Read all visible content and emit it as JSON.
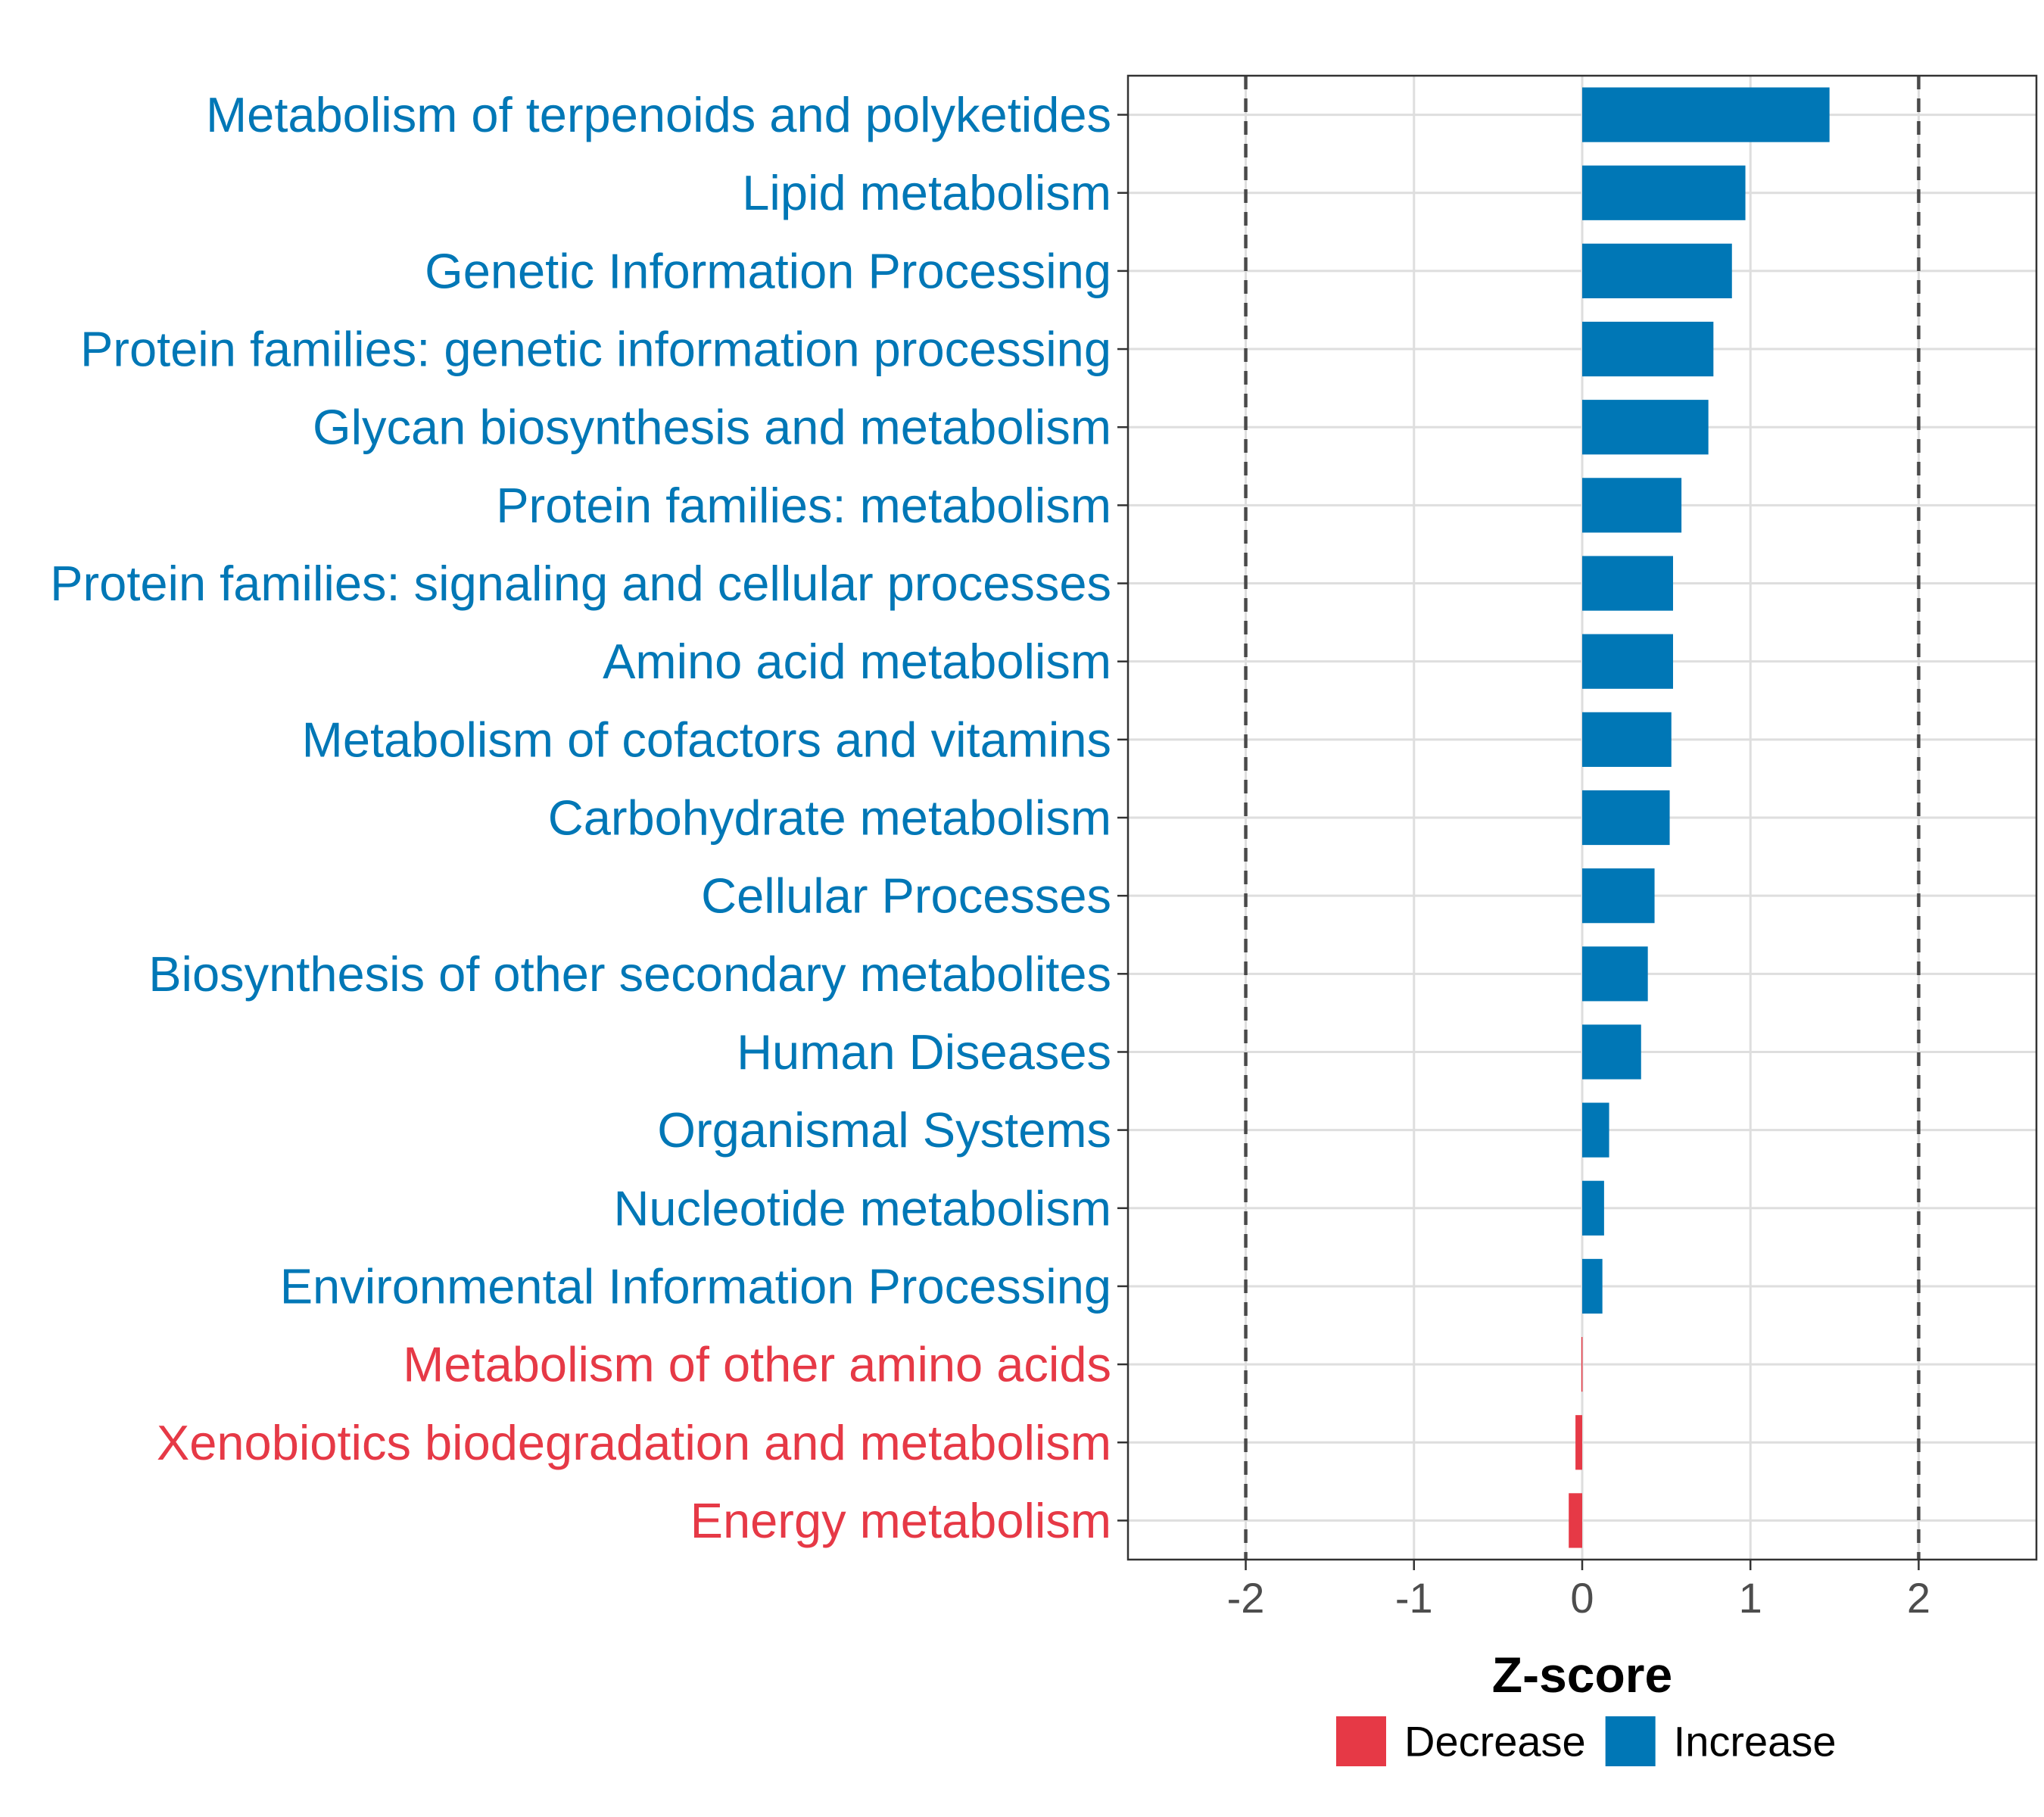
{
  "chart_data": {
    "type": "bar",
    "orientation": "horizontal",
    "xlabel": "Z-score",
    "xlim": [
      -2.7,
      2.7
    ],
    "x_ticks": [
      -2,
      -1,
      0,
      1,
      2
    ],
    "x_tick_labels": [
      "-2",
      "-1",
      "0",
      "1",
      "2"
    ],
    "reference_lines": [
      -2,
      2
    ],
    "grid": true,
    "legend_position": "bottom",
    "legend": [
      {
        "label": "Decrease",
        "color": "#E63946"
      },
      {
        "label": "Increase",
        "color": "#0077B6"
      }
    ],
    "categories": [
      "Metabolism of terpenoids and polyketides",
      "Lipid metabolism",
      "Genetic Information Processing",
      "Protein families: genetic information processing",
      "Glycan biosynthesis and metabolism",
      "Protein families: metabolism",
      "Protein families: signaling and cellular processes",
      "Amino acid metabolism",
      "Metabolism of cofactors and vitamins",
      "Carbohydrate metabolism",
      "Cellular Processes",
      "Biosynthesis of other secondary metabolites",
      "Human Diseases",
      "Organismal Systems",
      "Nucleotide metabolism",
      "Environmental Information Processing",
      "Metabolism of other amino acids",
      "Xenobiotics biodegradation and metabolism",
      "Energy metabolism"
    ],
    "values": [
      1.47,
      0.97,
      0.89,
      0.78,
      0.75,
      0.59,
      0.54,
      0.54,
      0.53,
      0.52,
      0.43,
      0.39,
      0.35,
      0.16,
      0.13,
      0.12,
      -0.005,
      -0.04,
      -0.08
    ],
    "groups": [
      "Increase",
      "Increase",
      "Increase",
      "Increase",
      "Increase",
      "Increase",
      "Increase",
      "Increase",
      "Increase",
      "Increase",
      "Increase",
      "Increase",
      "Increase",
      "Increase",
      "Increase",
      "Increase",
      "Decrease",
      "Decrease",
      "Decrease"
    ]
  }
}
